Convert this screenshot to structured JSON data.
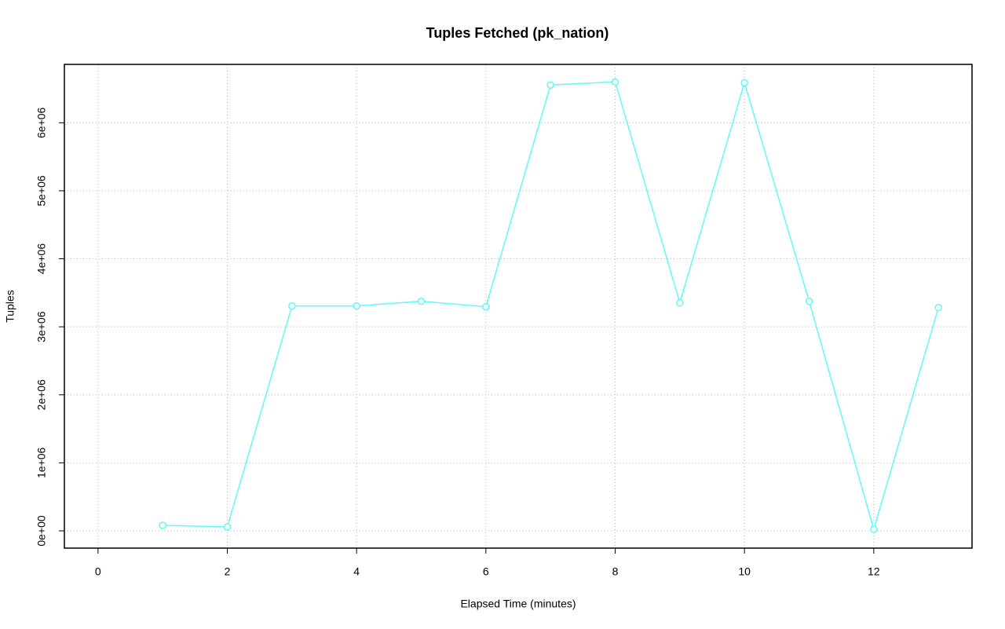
{
  "chart_data": {
    "type": "line",
    "title": "Tuples Fetched (pk_nation)",
    "x_label": "Elapsed Time (minutes)",
    "y_label": "Tuples",
    "x": [
      1,
      2,
      3,
      4,
      5,
      6,
      7,
      8,
      9,
      10,
      11,
      12,
      13
    ],
    "series": [
      {
        "name": "pk_nation",
        "color": "#5ffafa",
        "values": [
          81000,
          58000,
          3306000,
          3306000,
          3376000,
          3295000,
          6555000,
          6601000,
          3353000,
          6590000,
          3376000,
          23000,
          3283000
        ]
      }
    ],
    "xlim": [
      -0.52,
      13.52
    ],
    "ylim": [
      -254000,
      6858000
    ],
    "xticks": [
      0,
      2,
      4,
      6,
      8,
      10,
      12
    ],
    "yticks": [
      {
        "value": 0,
        "label": "0e+00"
      },
      {
        "value": 1000000,
        "label": "1e+06"
      },
      {
        "value": 2000000,
        "label": "2e+06"
      },
      {
        "value": 3000000,
        "label": "3e+06"
      },
      {
        "value": 4000000,
        "label": "4e+06"
      },
      {
        "value": 5000000,
        "label": "5e+06"
      },
      {
        "value": 6000000,
        "label": "6e+06"
      }
    ],
    "grid": true
  }
}
